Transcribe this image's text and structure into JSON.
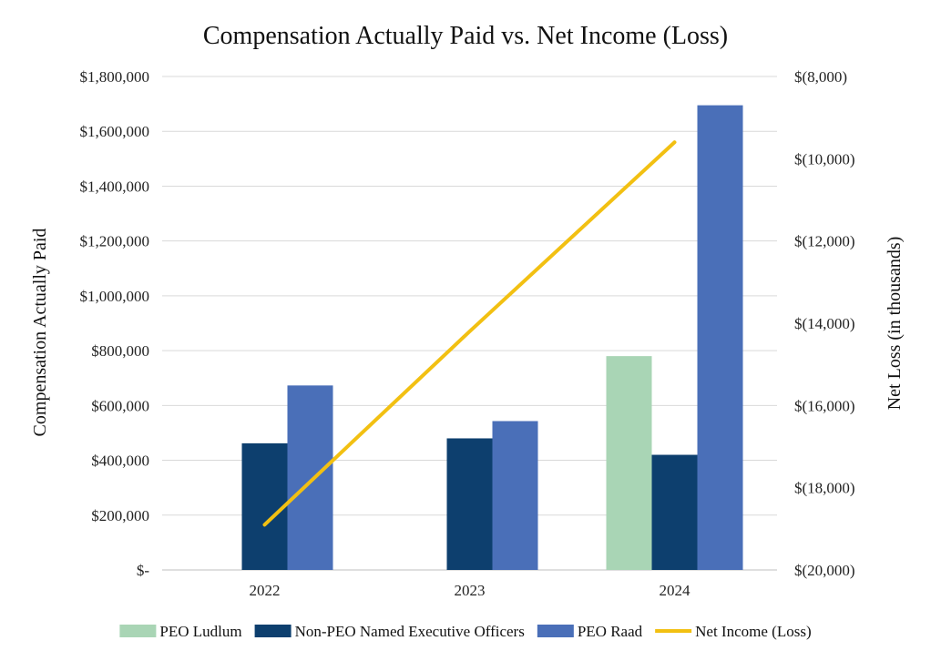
{
  "chart_data": {
    "type": "bar",
    "title": "Compensation Actually Paid vs. Net Income (Loss)",
    "categories": [
      "2022",
      "2023",
      "2024"
    ],
    "ylabel": "Compensation Actually Paid",
    "y2label": "Net Loss (in thousands)",
    "ylim": [
      0,
      1800000
    ],
    "y2lim": [
      -20000,
      -8000
    ],
    "yticks": [
      "$-",
      "$200,000",
      "$400,000",
      "$600,000",
      "$800,000",
      "$1,000,000",
      "$1,200,000",
      "$1,400,000",
      "$1,600,000",
      "$1,800,000"
    ],
    "y2ticks": [
      "$(20,000)",
      "$(18,000)",
      "$(16,000)",
      "$(14,000)",
      "$(12,000)",
      "$(10,000)",
      "$(8,000)"
    ],
    "grid": true,
    "legend": "bottom",
    "series": [
      {
        "name": "PEO Ludlum",
        "type": "bar",
        "color": "#a9d5b5",
        "values": [
          0,
          0,
          780000
        ]
      },
      {
        "name": "Non-PEO Named Executive Officers",
        "type": "bar",
        "color": "#0d3f6e",
        "values": [
          462000,
          480000,
          420000
        ]
      },
      {
        "name": "PEO Raad",
        "type": "bar",
        "color": "#4a6fb8",
        "values": [
          673000,
          543000,
          1695000
        ]
      },
      {
        "name": "Net Income (Loss)",
        "type": "line",
        "axis": "right",
        "color": "#f2c012",
        "values": [
          -18900,
          -14200,
          -9600
        ]
      }
    ]
  }
}
